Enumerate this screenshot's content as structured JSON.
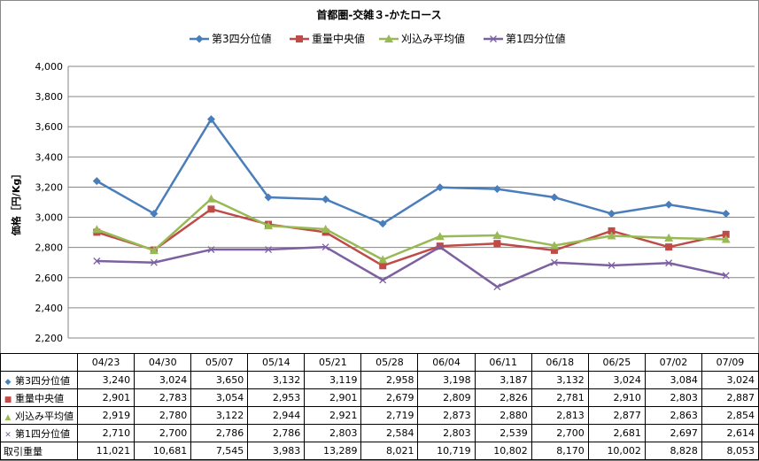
{
  "chart_data": {
    "type": "line",
    "title": "首都圏-交雑３-かたロース",
    "ylabel": "価格［円/Kg］",
    "xlabel": "",
    "ylim": [
      2200,
      4000
    ],
    "yticks": [
      2200,
      2400,
      2600,
      2800,
      3000,
      3200,
      3400,
      3600,
      3800,
      4000
    ],
    "ytick_labels": [
      "2,200",
      "2,400",
      "2,600",
      "2,800",
      "3,000",
      "3,200",
      "3,400",
      "3,600",
      "3,800",
      "4,000"
    ],
    "grid": true,
    "legend_position": "top",
    "categories": [
      "04/23",
      "04/30",
      "05/07",
      "05/14",
      "05/21",
      "05/28",
      "06/04",
      "06/11",
      "06/18",
      "06/25",
      "07/02",
      "07/09"
    ],
    "series": [
      {
        "name": "第3四分位値",
        "color": "#4a7ebb",
        "marker": "diamond",
        "values": [
          3240,
          3024,
          3650,
          3132,
          3119,
          2958,
          3198,
          3187,
          3132,
          3024,
          3084,
          3024
        ],
        "labels": [
          "3,240",
          "3,024",
          "3,650",
          "3,132",
          "3,119",
          "2,958",
          "3,198",
          "3,187",
          "3,132",
          "3,024",
          "3,084",
          "3,024"
        ]
      },
      {
        "name": "重量中央値",
        "color": "#be4b48",
        "marker": "square",
        "values": [
          2901,
          2783,
          3054,
          2953,
          2901,
          2679,
          2809,
          2826,
          2781,
          2910,
          2803,
          2887
        ],
        "labels": [
          "2,901",
          "2,783",
          "3,054",
          "2,953",
          "2,901",
          "2,679",
          "2,809",
          "2,826",
          "2,781",
          "2,910",
          "2,803",
          "2,887"
        ]
      },
      {
        "name": "刈込み平均値",
        "color": "#98b954",
        "marker": "triangle",
        "values": [
          2919,
          2780,
          3122,
          2944,
          2921,
          2719,
          2873,
          2880,
          2813,
          2877,
          2863,
          2854
        ],
        "labels": [
          "2,919",
          "2,780",
          "3,122",
          "2,944",
          "2,921",
          "2,719",
          "2,873",
          "2,880",
          "2,813",
          "2,877",
          "2,863",
          "2,854"
        ]
      },
      {
        "name": "第1四分位値",
        "color": "#7d60a0",
        "marker": "x",
        "values": [
          2710,
          2700,
          2786,
          2786,
          2803,
          2584,
          2803,
          2539,
          2700,
          2681,
          2697,
          2614
        ],
        "labels": [
          "2,710",
          "2,700",
          "2,786",
          "2,786",
          "2,803",
          "2,584",
          "2,803",
          "2,539",
          "2,700",
          "2,681",
          "2,697",
          "2,614"
        ]
      }
    ],
    "volume": {
      "name": "取引重量",
      "labels": [
        "11,021",
        "10,681",
        "7,545",
        "3,983",
        "13,289",
        "8,021",
        "10,719",
        "10,802",
        "8,170",
        "10,002",
        "8,828",
        "8,053"
      ]
    }
  }
}
